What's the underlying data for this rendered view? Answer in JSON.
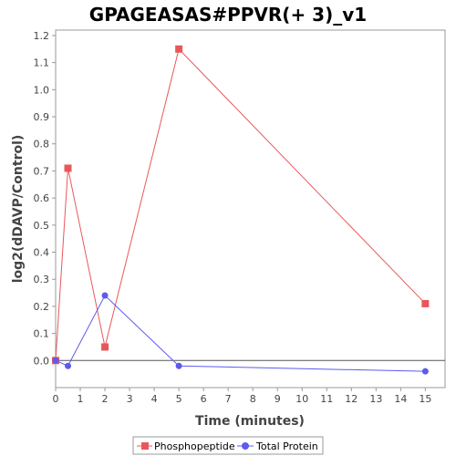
{
  "chart_data": {
    "type": "line",
    "title": "GPAGEASAS#PPVR(+ 3)_v1",
    "xlabel": "Time (minutes)",
    "ylabel": "log2(dDAVP/Control)",
    "xlim": [
      0,
      15.8
    ],
    "ylim": [
      -0.1,
      1.22
    ],
    "x_ticks": [
      0,
      1,
      2,
      3,
      4,
      5,
      6,
      7,
      8,
      9,
      10,
      11,
      12,
      13,
      14,
      15
    ],
    "y_ticks": [
      0.0,
      0.1,
      0.2,
      0.3,
      0.4,
      0.5,
      0.6,
      0.7,
      0.8,
      0.9,
      1.0,
      1.1,
      1.2
    ],
    "zero_line": true,
    "grid": false,
    "legend_position": "bottom",
    "series": [
      {
        "name": "Phosphopeptide",
        "color": "#e8585b",
        "marker": "square",
        "x": [
          0,
          0.5,
          2,
          5,
          15
        ],
        "y": [
          0.0,
          0.71,
          0.05,
          1.15,
          0.21
        ]
      },
      {
        "name": "Total Protein",
        "color": "#5b5bef",
        "marker": "circle",
        "x": [
          0,
          0.5,
          2,
          5,
          15
        ],
        "y": [
          0.0,
          -0.02,
          0.24,
          -0.02,
          -0.04
        ]
      }
    ]
  }
}
